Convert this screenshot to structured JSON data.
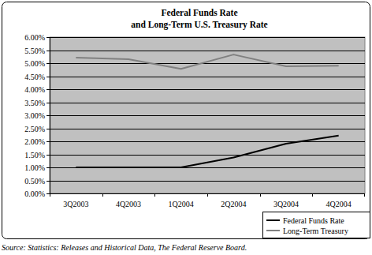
{
  "chart_data": {
    "type": "line",
    "title": "Federal Funds Rate",
    "subtitle": "and Long-Term U.S. Treasury Rate",
    "source": "Source: Statistics: Releases and Historical Data, The Federal Reserve Board.",
    "categories": [
      "3Q2003",
      "4Q2003",
      "1Q2004",
      "2Q2004",
      "3Q2004",
      "4Q2004"
    ],
    "series": [
      {
        "name": "Federal Funds Rate",
        "color": "#000000",
        "values": [
          1.0,
          1.0,
          1.0,
          1.38,
          1.91,
          2.22
        ]
      },
      {
        "name": "Long-Term Treasury",
        "color": "#808080",
        "values": [
          5.21,
          5.15,
          4.78,
          5.33,
          4.88,
          4.9
        ]
      }
    ],
    "ylim": [
      0,
      6
    ],
    "yticks": [
      {
        "value": 0,
        "label": "0.00%"
      },
      {
        "value": 0.5,
        "label": "0.50%"
      },
      {
        "value": 1,
        "label": "1.00%"
      },
      {
        "value": 1.5,
        "label": "1.50%"
      },
      {
        "value": 2,
        "label": "2.00%"
      },
      {
        "value": 2.5,
        "label": "2.50%"
      },
      {
        "value": 3,
        "label": "3.00%"
      },
      {
        "value": 3.5,
        "label": "3.50%"
      },
      {
        "value": 4,
        "label": "4.00%"
      },
      {
        "value": 4.5,
        "label": "4.50%"
      },
      {
        "value": 5,
        "label": "5.00%"
      },
      {
        "value": 5.5,
        "label": "5.50%"
      },
      {
        "value": 6,
        "label": "6.00%"
      }
    ],
    "grid": true,
    "legend": "bottom-right"
  }
}
